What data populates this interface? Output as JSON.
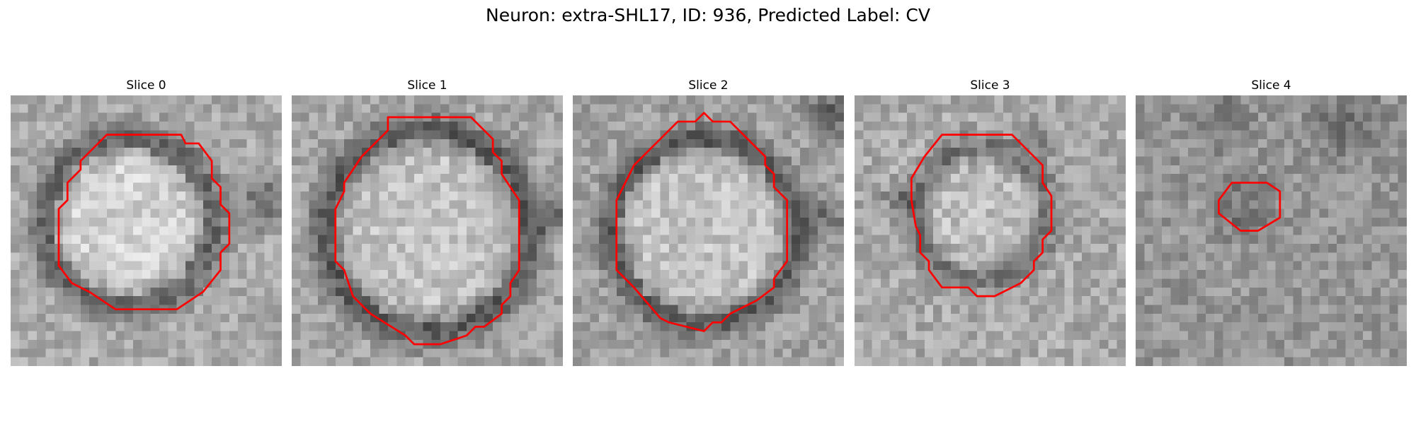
{
  "figure": {
    "title": "Neuron: extra-SHL17, ID: 936, Predicted Label: CV"
  },
  "colors": {
    "contour": "#ff0000",
    "background": "#ffffff"
  },
  "panels": [
    {
      "label": "Slice 0"
    },
    {
      "label": "Slice 1"
    },
    {
      "label": "Slice 2"
    },
    {
      "label": "Slice 3"
    },
    {
      "label": "Slice 4"
    }
  ]
}
